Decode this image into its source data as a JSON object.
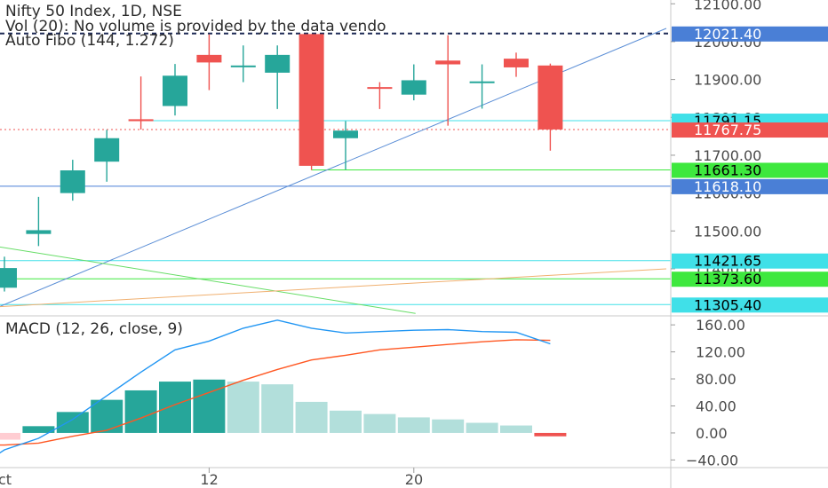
{
  "header": {
    "symbol_line": "Nifty 50 Index, 1D, NSE",
    "volume_line": "Vol (20): No volume is provided by the data vendo",
    "fibo_line": "Auto Fibo (144, 1.272)",
    "macd_line": "MACD (12, 26, close, 9)"
  },
  "colors": {
    "up": "#26a69a",
    "down": "#ef5350",
    "hist_up_strong": "#26a69a",
    "hist_up_fading": "#b2dfdb",
    "hist_down_strong": "#ef5350",
    "hist_down_fading": "#ffcdd2",
    "macd_line": "#2196f3",
    "signal_line": "#ff5722",
    "trendline": "#5b8ed6",
    "fib_cyan": "#40e0e8",
    "fib_green": "#3ee83e",
    "fib_blue": "#4a7fd6",
    "diag_green": "#66dd66",
    "diag_orange": "#f0b070",
    "dashed_navy": "#1e2a55"
  },
  "chart_data": [
    {
      "type": "candlestick",
      "ylim": [
        11278,
        12110
      ],
      "y_ticks": [
        11400,
        11500,
        11600,
        11700,
        11800,
        11900,
        12000,
        12100
      ],
      "y_tick_labels": [
        "11400.00",
        "11500.00",
        "11600.00",
        "11700.00",
        "11800.00",
        "11900.00",
        "12000.00",
        "12100.00"
      ],
      "x_ticks": [
        {
          "index": -0.15,
          "label": "ct"
        },
        {
          "index": 6,
          "label": "12"
        },
        {
          "index": 12,
          "label": "20"
        }
      ],
      "candles": [
        {
          "o": 11350,
          "h": 11432,
          "l": 11340,
          "c": 11402
        },
        {
          "o": 11492,
          "h": 11590,
          "l": 11460,
          "c": 11502
        },
        {
          "o": 11600,
          "h": 11688,
          "l": 11580,
          "c": 11660
        },
        {
          "o": 11683,
          "h": 11767,
          "l": 11630,
          "c": 11745
        },
        {
          "o": 11795,
          "h": 11908,
          "l": 11768,
          "c": 11790
        },
        {
          "o": 11830,
          "h": 11941,
          "l": 11805,
          "c": 11910
        },
        {
          "o": 11965,
          "h": 12019,
          "l": 11872,
          "c": 11945
        },
        {
          "o": 11935,
          "h": 11990,
          "l": 11893,
          "c": 11937
        },
        {
          "o": 11918,
          "h": 11990,
          "l": 11822,
          "c": 11965
        },
        {
          "o": 12020,
          "h": 12020,
          "l": 11661,
          "c": 11672
        },
        {
          "o": 11745,
          "h": 11790,
          "l": 11662,
          "c": 11765
        },
        {
          "o": 11880,
          "h": 11893,
          "l": 11822,
          "c": 11878
        },
        {
          "o": 11860,
          "h": 11940,
          "l": 11845,
          "c": 11898
        },
        {
          "o": 11950,
          "h": 12017,
          "l": 11778,
          "c": 11940
        },
        {
          "o": 11893,
          "h": 11940,
          "l": 11823,
          "c": 11895
        },
        {
          "o": 11955,
          "h": 11971,
          "l": 11907,
          "c": 11932
        },
        {
          "o": 11937,
          "h": 11942,
          "l": 11712,
          "c": 11768
        }
      ],
      "horizontal_levels": [
        {
          "value": 12021.4,
          "label": "12021.40",
          "kind": "dashed",
          "badge_bg": "#4a7fd6",
          "badge_fg": "#ffffff",
          "line_from": 0
        },
        {
          "value": 11791.15,
          "label": "11791.15",
          "kind": "cyan",
          "badge_bg": "#40e0e8",
          "badge_fg": "#000000",
          "line_from": 4
        },
        {
          "value": 11767.75,
          "label": "11767.75",
          "kind": "dotted",
          "badge_bg": "#ef5350",
          "badge_fg": "#ffffff",
          "line_from": 0
        },
        {
          "value": 11661.3,
          "label": "11661.30",
          "kind": "green",
          "badge_bg": "#3ee83e",
          "badge_fg": "#000000",
          "line_from": 9
        },
        {
          "value": 11618.1,
          "label": "11618.10",
          "kind": "blue",
          "badge_bg": "#4a7fd6",
          "badge_fg": "#ffffff",
          "line_from": 0
        },
        {
          "value": 11421.65,
          "label": "11421.65",
          "kind": "cyan",
          "badge_bg": "#40e0e8",
          "badge_fg": "#000000",
          "line_from": 0
        },
        {
          "value": 11373.6,
          "label": "11373.60",
          "kind": "green",
          "badge_bg": "#3ee83e",
          "badge_fg": "#000000",
          "line_from": 0
        },
        {
          "value": 11305.4,
          "label": "11305.40",
          "kind": "cyan",
          "badge_bg": "#40e0e8",
          "badge_fg": "#000000",
          "line_from": 0
        }
      ],
      "trendlines": [
        {
          "kind": "trend",
          "x1": -0.15,
          "y1": 11300,
          "x2": 19.4,
          "y2": 12035
        },
        {
          "kind": "diag_green",
          "x1": -0.15,
          "y1": 11458,
          "x2": 12.05,
          "y2": 11282
        },
        {
          "kind": "diag_orange",
          "x1": -0.15,
          "y1": 11300,
          "x2": 19.4,
          "y2": 11400
        }
      ]
    },
    {
      "type": "macd",
      "ylim": [
        -50,
        172
      ],
      "y_ticks": [
        -40,
        0,
        40,
        80,
        120,
        160
      ],
      "y_tick_labels": [
        "−40.00",
        "0.00",
        "40.00",
        "80.00",
        "120.00",
        "160.00"
      ],
      "histogram": [
        {
          "v": -10,
          "style": "down_fading"
        },
        {
          "v": 10,
          "style": "up_strong"
        },
        {
          "v": 31,
          "style": "up_strong"
        },
        {
          "v": 49,
          "style": "up_strong"
        },
        {
          "v": 63,
          "style": "up_strong"
        },
        {
          "v": 76,
          "style": "up_strong"
        },
        {
          "v": 79,
          "style": "up_strong"
        },
        {
          "v": 76,
          "style": "up_fading"
        },
        {
          "v": 72,
          "style": "up_fading"
        },
        {
          "v": 46,
          "style": "up_fading"
        },
        {
          "v": 33,
          "style": "up_fading"
        },
        {
          "v": 28,
          "style": "up_fading"
        },
        {
          "v": 23,
          "style": "up_fading"
        },
        {
          "v": 20,
          "style": "up_fading"
        },
        {
          "v": 15,
          "style": "up_fading"
        },
        {
          "v": 11,
          "style": "up_fading"
        },
        {
          "v": -5,
          "style": "down_strong"
        }
      ],
      "macd_line": [
        {
          "x": -0.15,
          "y": -30
        },
        {
          "x": 0,
          "y": -25
        },
        {
          "x": 1,
          "y": -8
        },
        {
          "x": 2,
          "y": 20
        },
        {
          "x": 3,
          "y": 55
        },
        {
          "x": 4,
          "y": 90
        },
        {
          "x": 5,
          "y": 123
        },
        {
          "x": 6,
          "y": 136
        },
        {
          "x": 7,
          "y": 155
        },
        {
          "x": 8,
          "y": 167
        },
        {
          "x": 9,
          "y": 155
        },
        {
          "x": 10,
          "y": 148
        },
        {
          "x": 11,
          "y": 150
        },
        {
          "x": 12,
          "y": 152
        },
        {
          "x": 13,
          "y": 153
        },
        {
          "x": 14,
          "y": 150
        },
        {
          "x": 15,
          "y": 149
        },
        {
          "x": 16,
          "y": 132
        }
      ],
      "signal_line": [
        {
          "x": -0.15,
          "y": -18
        },
        {
          "x": 0,
          "y": -18
        },
        {
          "x": 1,
          "y": -15
        },
        {
          "x": 2,
          "y": -5
        },
        {
          "x": 3,
          "y": 4
        },
        {
          "x": 4,
          "y": 22
        },
        {
          "x": 5,
          "y": 42
        },
        {
          "x": 6,
          "y": 60
        },
        {
          "x": 7,
          "y": 78
        },
        {
          "x": 8,
          "y": 94
        },
        {
          "x": 9,
          "y": 108
        },
        {
          "x": 10,
          "y": 115
        },
        {
          "x": 11,
          "y": 123
        },
        {
          "x": 12,
          "y": 127
        },
        {
          "x": 13,
          "y": 131
        },
        {
          "x": 14,
          "y": 135
        },
        {
          "x": 15,
          "y": 138
        },
        {
          "x": 16,
          "y": 137
        }
      ]
    }
  ]
}
